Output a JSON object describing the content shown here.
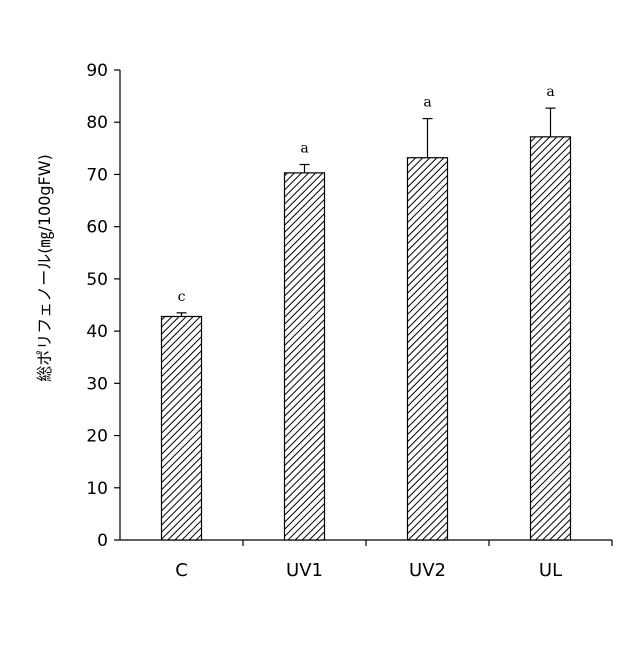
{
  "chart_data": {
    "type": "bar",
    "categories": [
      "C",
      "UV1",
      "UV2",
      "UL"
    ],
    "values": [
      42.8,
      70.3,
      73.2,
      77.2
    ],
    "error": [
      0.7,
      1.6,
      7.5,
      5.5
    ],
    "significance": [
      "c",
      "a",
      "a",
      "a"
    ],
    "ylabel": "総ポリフェノール(㎎/100gFW)",
    "xlabel": "",
    "ylim": [
      0,
      90
    ],
    "yticks": [
      0,
      10,
      20,
      30,
      40,
      50,
      60,
      70,
      80,
      90
    ],
    "grid": false,
    "legend": "none",
    "bar_fill": "hatched-diagonal",
    "colors": {
      "bar_stroke": "#000000",
      "hatch": "#000000",
      "axis": "#000000"
    }
  }
}
